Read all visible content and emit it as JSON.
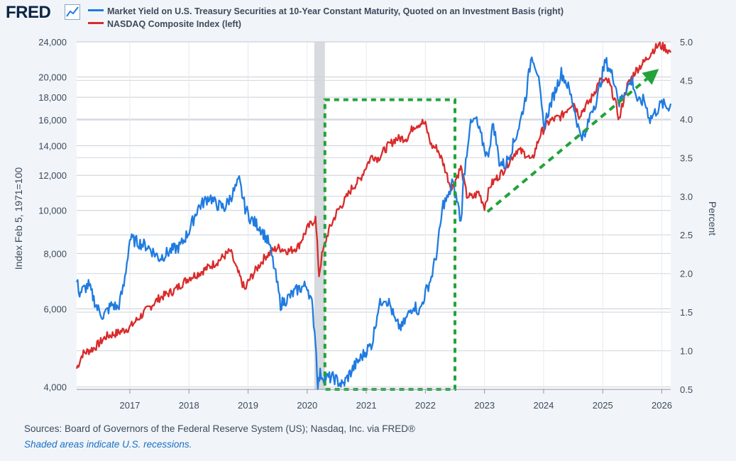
{
  "header": {
    "logo_text": "FRED",
    "logo_icon": "line-chart-icon"
  },
  "legend": [
    {
      "label": "Market Yield on U.S. Treasury Securities at 10-Year Constant Maturity, Quoted on an Investment Basis (right)",
      "color": "#1f7be0"
    },
    {
      "label": "NASDAQ Composite Index (left)",
      "color": "#d92b2b"
    }
  ],
  "chart_data": {
    "type": "line",
    "title": "",
    "ylabel_left": "Index Feb 5, 1971=100",
    "ylabel_right": "Percent",
    "left_scale": "log",
    "ylim_left": [
      3950,
      24000
    ],
    "ylim_right": [
      0.5,
      5.0
    ],
    "xlim": [
      2016.1,
      2026.15
    ],
    "x_ticks": [
      "2017",
      "2018",
      "2019",
      "2020",
      "2021",
      "2022",
      "2023",
      "2024",
      "2025",
      "2026"
    ],
    "y_ticks_left": [
      "4,000",
      "6,000",
      "8,000",
      "10,000",
      "12,000",
      "14,000",
      "16,000",
      "18,000",
      "20,000",
      "24,000"
    ],
    "y_ticks_right": [
      "0.5",
      "1.0",
      "1.5",
      "2.0",
      "2.5",
      "3.0",
      "3.5",
      "4.0",
      "4.5",
      "5.0"
    ],
    "recession": {
      "start": 2020.12,
      "end": 2020.3
    },
    "series": [
      {
        "name": "NASDAQ Composite Index (left)",
        "axis": "left",
        "color": "#d92b2b",
        "x": [
          2016.1,
          2016.2,
          2016.4,
          2016.6,
          2016.8,
          2017.0,
          2017.25,
          2017.5,
          2017.75,
          2018.0,
          2018.15,
          2018.3,
          2018.5,
          2018.7,
          2018.8,
          2018.95,
          2019.0,
          2019.3,
          2019.5,
          2019.7,
          2019.85,
          2020.0,
          2020.14,
          2020.2,
          2020.25,
          2020.35,
          2020.5,
          2020.65,
          2020.75,
          2020.9,
          2021.0,
          2021.1,
          2021.2,
          2021.35,
          2021.5,
          2021.7,
          2021.8,
          2021.95,
          2022.0,
          2022.1,
          2022.2,
          2022.3,
          2022.4,
          2022.45,
          2022.6,
          2022.7,
          2022.8,
          2022.9,
          2023.0,
          2023.1,
          2023.3,
          2023.55,
          2023.7,
          2023.8,
          2023.95,
          2024.1,
          2024.3,
          2024.5,
          2024.6,
          2024.8,
          2024.95,
          2025.1,
          2025.2,
          2025.28,
          2025.4,
          2025.55,
          2025.7,
          2025.85,
          2025.95,
          2026.05,
          2026.15
        ],
        "values": [
          4400,
          4750,
          4900,
          5200,
          5300,
          5450,
          5900,
          6350,
          6600,
          7050,
          7200,
          7400,
          7700,
          8100,
          7400,
          6600,
          6900,
          7900,
          8250,
          8100,
          8300,
          9100,
          9600,
          7150,
          7900,
          8900,
          9900,
          10600,
          11200,
          11800,
          12600,
          13300,
          13100,
          13900,
          14500,
          14600,
          15500,
          15800,
          15600,
          14000,
          13800,
          12800,
          11600,
          11200,
          12500,
          10800,
          10700,
          11000,
          10200,
          11400,
          12200,
          13700,
          13400,
          12900,
          14900,
          15900,
          16300,
          17600,
          16400,
          17800,
          19600,
          19500,
          17800,
          16000,
          18900,
          20600,
          21600,
          23000,
          23600,
          23300,
          22700
        ]
      },
      {
        "name": "Market Yield on U.S. Treasury Securities at 10-Year Constant Maturity (right)",
        "axis": "right",
        "color": "#1f7be0",
        "x": [
          2016.1,
          2016.15,
          2016.3,
          2016.45,
          2016.55,
          2016.7,
          2016.8,
          2016.9,
          2017.0,
          2017.3,
          2017.5,
          2017.7,
          2017.85,
          2018.0,
          2018.15,
          2018.35,
          2018.45,
          2018.6,
          2018.75,
          2018.85,
          2018.95,
          2019.05,
          2019.2,
          2019.35,
          2019.45,
          2019.55,
          2019.7,
          2019.85,
          2020.0,
          2020.08,
          2020.14,
          2020.18,
          2020.22,
          2020.3,
          2020.45,
          2020.6,
          2020.8,
          2020.95,
          2021.1,
          2021.2,
          2021.3,
          2021.4,
          2021.5,
          2021.6,
          2021.7,
          2021.8,
          2021.9,
          2022.0,
          2022.1,
          2022.2,
          2022.3,
          2022.4,
          2022.45,
          2022.55,
          2022.6,
          2022.65,
          2022.75,
          2022.85,
          2022.95,
          2023.05,
          2023.15,
          2023.25,
          2023.35,
          2023.5,
          2023.6,
          2023.7,
          2023.8,
          2023.9,
          2024.0,
          2024.1,
          2024.3,
          2024.4,
          2024.5,
          2024.6,
          2024.7,
          2024.8,
          2024.9,
          2025.0,
          2025.05,
          2025.2,
          2025.28,
          2025.4,
          2025.5,
          2025.6,
          2025.7,
          2025.8,
          2025.9,
          2026.0,
          2026.1,
          2026.15
        ],
        "values": [
          1.9,
          1.75,
          1.85,
          1.55,
          1.45,
          1.6,
          1.55,
          1.85,
          2.45,
          2.35,
          2.2,
          2.3,
          2.35,
          2.55,
          2.85,
          3.0,
          2.9,
          2.85,
          3.05,
          3.2,
          2.85,
          2.7,
          2.6,
          2.4,
          2.05,
          1.6,
          1.7,
          1.8,
          1.85,
          1.6,
          1.15,
          0.55,
          0.7,
          0.65,
          0.65,
          0.55,
          0.8,
          0.95,
          1.1,
          1.55,
          1.7,
          1.6,
          1.35,
          1.3,
          1.45,
          1.6,
          1.5,
          1.75,
          1.95,
          2.3,
          2.9,
          3.0,
          3.2,
          2.9,
          2.65,
          3.25,
          3.9,
          4.0,
          3.75,
          3.5,
          3.95,
          3.45,
          3.4,
          3.7,
          3.95,
          4.3,
          4.85,
          4.6,
          3.9,
          4.15,
          4.6,
          4.45,
          4.2,
          3.85,
          3.75,
          4.1,
          4.25,
          4.6,
          4.75,
          4.5,
          4.2,
          4.4,
          4.5,
          4.2,
          4.25,
          4.0,
          4.1,
          4.2,
          4.15,
          4.2
        ]
      }
    ],
    "annotations": [
      {
        "type": "dashed-rectangle",
        "x_range": [
          2020.3,
          2022.5
        ],
        "y_range_right": [
          0.5,
          4.25
        ],
        "color": "#22a33a"
      },
      {
        "type": "dashed-arrow",
        "from": {
          "x": 2023.05,
          "y_right": 2.8
        },
        "to": {
          "x": 2025.95,
          "y_right": 4.65
        },
        "color": "#22a33a"
      }
    ]
  },
  "footer": {
    "sources": "Sources: Board of Governors of the Federal Reserve System (US); Nasdaq, Inc. via FRED®",
    "recession_note": "Shaded areas indicate U.S. recessions."
  }
}
